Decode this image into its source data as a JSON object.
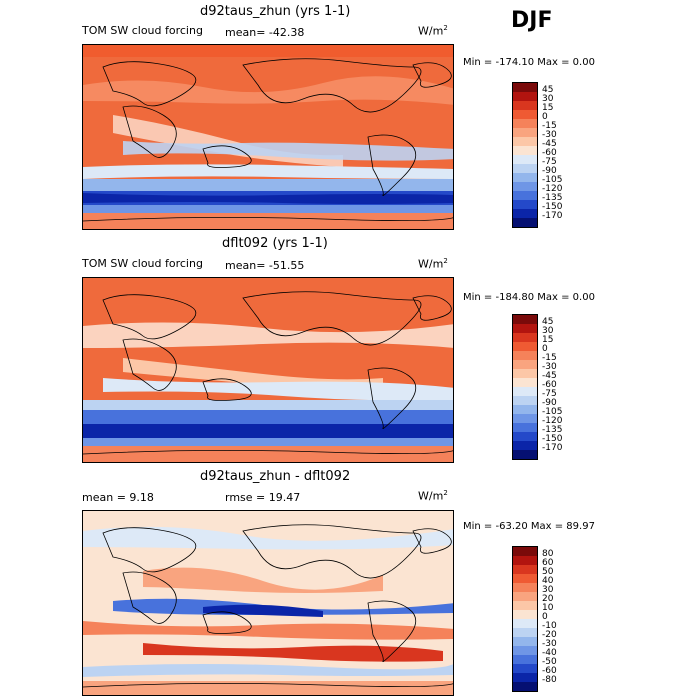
{
  "season": "DJF",
  "panels": [
    {
      "title": "d92taus_zhun (yrs 1-1)",
      "left_label": "TOM SW cloud forcing",
      "mean_label": "mean= -42.38",
      "units": "W/m",
      "units_sup": "2",
      "minmax": "Min = -174.10 Max =   0.00",
      "colorbar": {
        "labels": [
          "45",
          "30",
          "15",
          "0",
          "-15",
          "-30",
          "-45",
          "-60",
          "-75",
          "-90",
          "-105",
          "-120",
          "-135",
          "-150",
          "-170"
        ],
        "colors": [
          "#7a0a0a",
          "#b2140f",
          "#d9361f",
          "#ef5a33",
          "#f5825a",
          "#f9a47f",
          "#fcc7a7",
          "#fbe4d2",
          "#dde9f7",
          "#bcd3f2",
          "#93b6ec",
          "#6f96e6",
          "#4872dc",
          "#2449c9",
          "#0b25a8",
          "#051072"
        ]
      }
    },
    {
      "title": "dflt092 (yrs 1-1)",
      "left_label": "TOM SW cloud forcing",
      "mean_label": "mean= -51.55",
      "units": "W/m",
      "units_sup": "2",
      "minmax": "Min = -184.80 Max =   0.00",
      "colorbar": {
        "labels": [
          "45",
          "30",
          "15",
          "0",
          "-15",
          "-30",
          "-45",
          "-60",
          "-75",
          "-90",
          "-105",
          "-120",
          "-135",
          "-150",
          "-170"
        ],
        "colors": [
          "#7a0a0a",
          "#b2140f",
          "#d9361f",
          "#ef5a33",
          "#f5825a",
          "#f9a47f",
          "#fcc7a7",
          "#fbe4d2",
          "#dde9f7",
          "#bcd3f2",
          "#93b6ec",
          "#6f96e6",
          "#4872dc",
          "#2449c9",
          "#0b25a8",
          "#051072"
        ]
      }
    },
    {
      "title": "d92taus_zhun - dflt092",
      "left_label": "mean =    9.18",
      "mean_label": "rmse =   19.47",
      "units": "W/m",
      "units_sup": "2",
      "minmax": "Min = -63.20 Max =  89.97",
      "colorbar": {
        "labels": [
          "80",
          "60",
          "50",
          "40",
          "30",
          "20",
          "10",
          "0",
          "-10",
          "-20",
          "-30",
          "-40",
          "-50",
          "-60",
          "-80"
        ],
        "colors": [
          "#7a0a0a",
          "#b2140f",
          "#d9361f",
          "#ef5a33",
          "#f5825a",
          "#f9a47f",
          "#fcc7a7",
          "#fbe4d2",
          "#dde9f7",
          "#bcd3f2",
          "#93b6ec",
          "#6f96e6",
          "#4872dc",
          "#2449c9",
          "#0b25a8",
          "#051072"
        ]
      }
    }
  ],
  "chart_data": {
    "type": "heatmap",
    "title": "DJF",
    "series": [
      {
        "name": "d92taus_zhun (yrs 1-1)",
        "variable": "TOM SW cloud forcing",
        "mean": -42.38,
        "min": -174.1,
        "max": 0.0,
        "units": "W/m2"
      },
      {
        "name": "dflt092 (yrs 1-1)",
        "variable": "TOM SW cloud forcing",
        "mean": -51.55,
        "min": -184.8,
        "max": 0.0,
        "units": "W/m2"
      },
      {
        "name": "d92taus_zhun - dflt092",
        "mean": 9.18,
        "rmse": 19.47,
        "min": -63.2,
        "max": 89.97,
        "units": "W/m2"
      }
    ],
    "legend_placement": "right"
  }
}
